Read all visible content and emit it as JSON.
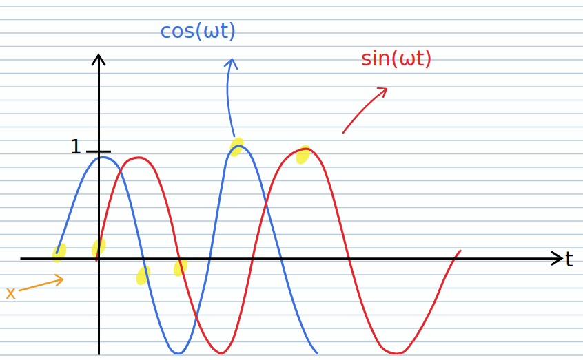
{
  "chart_data": {
    "type": "line",
    "x_label": "t",
    "xlim": [
      -3.8,
      22.4
    ],
    "ylim": [
      -0.9,
      1.9
    ],
    "yticks": [
      1
    ],
    "tick_labels": "y",
    "grid": false,
    "series": [
      {
        "name": "cos(ωt)",
        "color": "#3b6fe0",
        "x": [
          -2.03,
          -1.6,
          -1.1,
          -0.6,
          -0.1,
          0.4,
          0.9,
          1.4,
          1.9,
          2.23,
          2.57,
          3.07,
          3.57,
          3.97,
          4.4,
          4.83,
          5.23,
          5.63,
          5.97,
          6.3,
          6.73,
          7.23,
          7.73,
          8.23,
          8.73,
          9.23,
          9.73,
          10.23,
          10.57
        ],
        "values": [
          0.05,
          0.29,
          0.58,
          0.81,
          0.93,
          0.94,
          0.87,
          0.62,
          0.23,
          -0.06,
          -0.35,
          -0.67,
          -0.87,
          -0.89,
          -0.77,
          -0.48,
          -0.16,
          0.29,
          0.68,
          0.97,
          1.05,
          1.0,
          0.78,
          0.42,
          0.07,
          -0.29,
          -0.58,
          -0.8,
          -0.89
        ]
      },
      {
        "name": "sin(ωt)",
        "color": "#e3262b",
        "x": [
          -0.1,
          0.23,
          0.57,
          0.97,
          1.4,
          2.07,
          2.57,
          3.07,
          3.5,
          3.9,
          4.3,
          4.73,
          5.17,
          5.57,
          5.97,
          6.4,
          6.83,
          7.23,
          7.63,
          8.07,
          8.5,
          8.97,
          9.57,
          10.17,
          10.73,
          11.23,
          11.73,
          12.23,
          12.73,
          13.23,
          13.73,
          14.23,
          14.73,
          15.23,
          15.73,
          16.23,
          16.73,
          17.23,
          17.5
        ],
        "values": [
          -0.02,
          0.29,
          0.55,
          0.78,
          0.91,
          0.94,
          0.87,
          0.65,
          0.36,
          0.0,
          -0.29,
          -0.55,
          -0.74,
          -0.85,
          -0.89,
          -0.8,
          -0.55,
          -0.22,
          0.16,
          0.49,
          0.75,
          0.91,
          1.0,
          1.02,
          0.91,
          0.65,
          0.29,
          -0.09,
          -0.42,
          -0.67,
          -0.84,
          -0.89,
          -0.88,
          -0.77,
          -0.61,
          -0.42,
          -0.19,
          0.0,
          0.07
        ]
      }
    ],
    "highlights": [
      {
        "x": -1.9,
        "y": 0.05
      },
      {
        "x": 0,
        "y": 0.1
      },
      {
        "x": 2.17,
        "y": -0.16
      },
      {
        "x": 3.97,
        "y": -0.08
      },
      {
        "x": 6.67,
        "y": 1.04
      },
      {
        "x": 9.9,
        "y": 0.97
      }
    ],
    "annotations": [
      {
        "text": "x",
        "color": "#f29a1f"
      }
    ]
  }
}
